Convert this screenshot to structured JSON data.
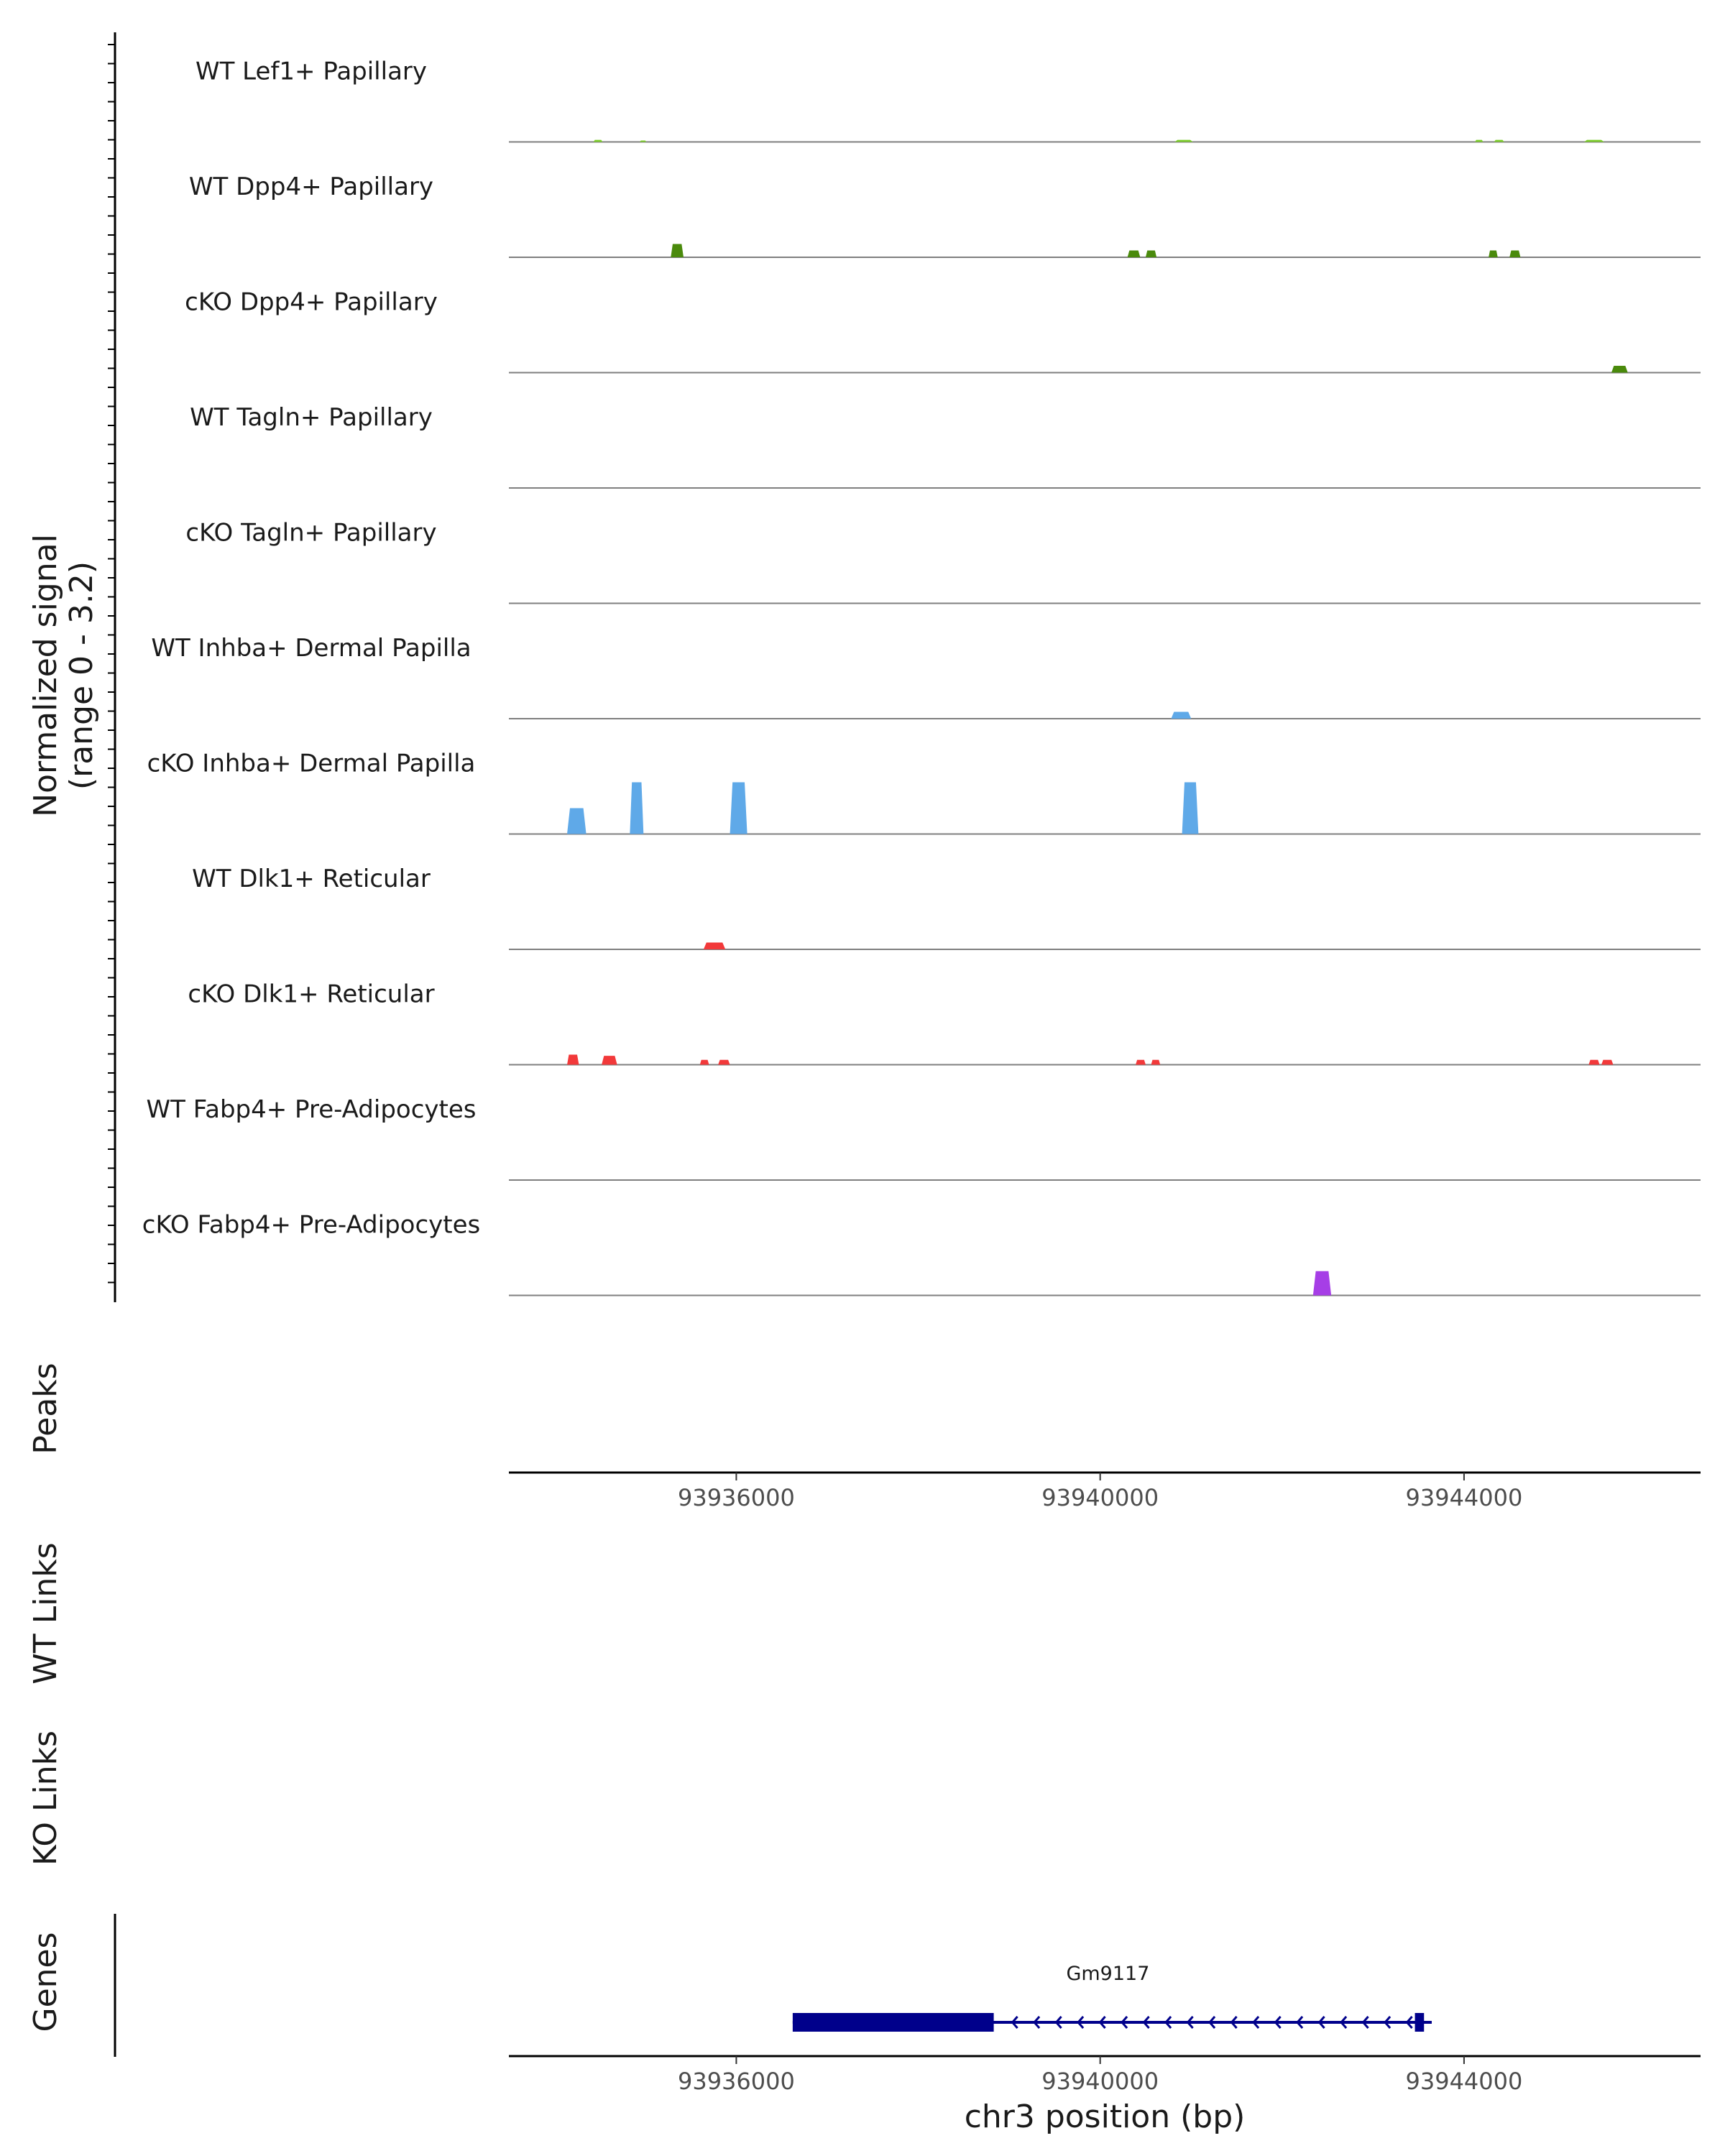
{
  "chart_data": {
    "type": "coverage",
    "chromosome": "chr3",
    "xlim": [
      93933500,
      93946600
    ],
    "y_axis_label": "Normalized signal",
    "y_axis_range_label": "(range 0 - 3.2)",
    "ylim": [
      0,
      3.2
    ],
    "tracks": [
      {
        "label": "WT Lef1+ Papillary",
        "color": "#7ccd2b",
        "peaks": [
          {
            "start": 93934430,
            "end": 93934530,
            "height": 0.13
          },
          {
            "start": 93934940,
            "end": 93935010,
            "height": 0.09
          },
          {
            "start": 93940820,
            "end": 93941020,
            "height": 0.13
          },
          {
            "start": 93944120,
            "end": 93944210,
            "height": 0.13
          },
          {
            "start": 93944330,
            "end": 93944440,
            "height": 0.13
          },
          {
            "start": 93945320,
            "end": 93945540,
            "height": 0.13
          }
        ]
      },
      {
        "label": "WT Dpp4+ Papillary",
        "color": "#4a8a0c",
        "peaks": [
          {
            "start": 93935280,
            "end": 93935420,
            "height": 0.82
          },
          {
            "start": 93940300,
            "end": 93940440,
            "height": 0.42
          },
          {
            "start": 93940500,
            "end": 93940620,
            "height": 0.42
          },
          {
            "start": 93944270,
            "end": 93944370,
            "height": 0.42
          },
          {
            "start": 93944500,
            "end": 93944620,
            "height": 0.42
          }
        ]
      },
      {
        "label": "cKO Dpp4+ Papillary",
        "color": "#4a8a0c",
        "peaks": [
          {
            "start": 93945620,
            "end": 93945800,
            "height": 0.42
          }
        ]
      },
      {
        "label": "WT Tagln+ Papillary",
        "color": "#4a8a0c",
        "peaks": []
      },
      {
        "label": "cKO Tagln+ Papillary",
        "color": "#4a8a0c",
        "peaks": []
      },
      {
        "label": "WT Inhba+ Dermal Papilla",
        "color": "#5fa9e8",
        "peaks": [
          {
            "start": 93940780,
            "end": 93941000,
            "height": 0.42
          }
        ]
      },
      {
        "label": "cKO Inhba+ Dermal Papilla",
        "color": "#5fa9e8",
        "peaks": [
          {
            "start": 93934140,
            "end": 93934350,
            "height": 1.6
          },
          {
            "start": 93934830,
            "end": 93934980,
            "height": 3.2
          },
          {
            "start": 93935930,
            "end": 93936120,
            "height": 3.2
          },
          {
            "start": 93940900,
            "end": 93941080,
            "height": 3.2
          }
        ]
      },
      {
        "label": "WT Dlk1+ Reticular",
        "color": "#f2393a",
        "peaks": [
          {
            "start": 93935640,
            "end": 93935880,
            "height": 0.42
          }
        ]
      },
      {
        "label": "cKO Dlk1+ Reticular",
        "color": "#f2393a",
        "peaks": [
          {
            "start": 93934140,
            "end": 93934270,
            "height": 0.62
          },
          {
            "start": 93934520,
            "end": 93934690,
            "height": 0.55
          },
          {
            "start": 93935600,
            "end": 93935700,
            "height": 0.3
          },
          {
            "start": 93935800,
            "end": 93935930,
            "height": 0.3
          },
          {
            "start": 93940390,
            "end": 93940500,
            "height": 0.3
          },
          {
            "start": 93940560,
            "end": 93940660,
            "height": 0.3
          },
          {
            "start": 93945370,
            "end": 93945490,
            "height": 0.3
          },
          {
            "start": 93945510,
            "end": 93945640,
            "height": 0.3
          }
        ]
      },
      {
        "label": "WT Fabp4+ Pre-Adipocytes",
        "color": "#a63ee6",
        "peaks": []
      },
      {
        "label": "cKO Fabp4+ Pre-Adipocytes",
        "color": "#a63ee6",
        "peaks": [
          {
            "start": 93942340,
            "end": 93942540,
            "height": 1.5
          }
        ]
      }
    ],
    "panel_labels": {
      "peaks": "Peaks",
      "wt_links": "WT Links",
      "ko_links": "KO Links",
      "genes": "Genes"
    },
    "x_ticks": [
      {
        "value": 93936000,
        "label": "93936000"
      },
      {
        "value": 93940000,
        "label": "93940000"
      },
      {
        "value": 93944000,
        "label": "93944000"
      }
    ],
    "x_axis_label": "chr3 position (bp)",
    "gene": {
      "name": "Gm9117",
      "strand": "-",
      "color": "#00008b",
      "start": 93936620,
      "end": 93943550,
      "thick_start": 93936620,
      "thick_end": 93938830,
      "exon_end_start": 93943460,
      "exon_end_end": 93943560
    }
  }
}
